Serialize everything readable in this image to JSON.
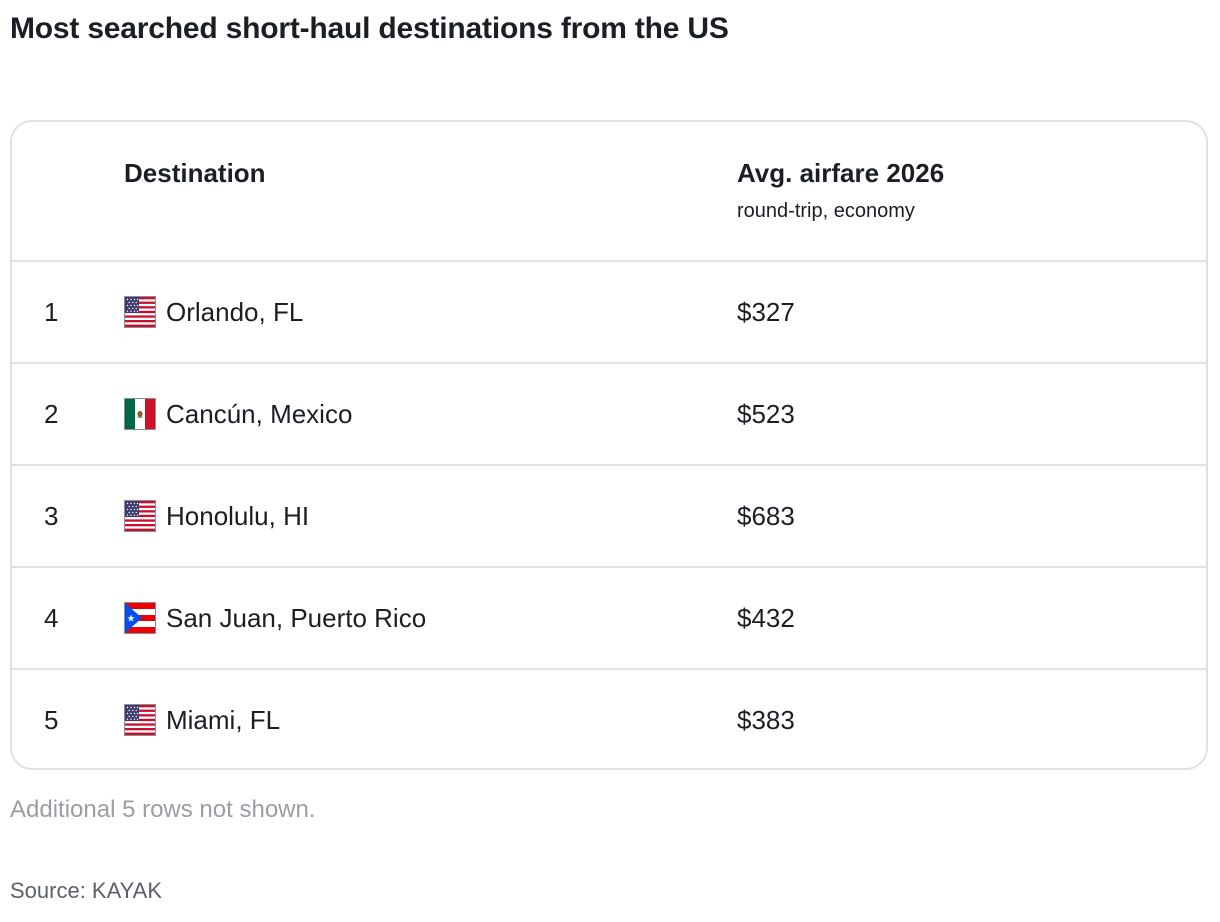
{
  "title": "Most searched short-haul destinations from the US",
  "table": {
    "headers": {
      "destination": "Destination",
      "airfare": "Avg. airfare 2026",
      "airfare_sub": "round-trip, economy"
    },
    "rows": [
      {
        "rank": "1",
        "flag_icon": "us-flag-icon",
        "destination": "Orlando, FL",
        "airfare": "$327"
      },
      {
        "rank": "2",
        "flag_icon": "mexico-flag-icon",
        "destination": "Cancún, Mexico",
        "airfare": "$523"
      },
      {
        "rank": "3",
        "flag_icon": "us-flag-icon",
        "destination": "Honolulu, HI",
        "airfare": "$683"
      },
      {
        "rank": "4",
        "flag_icon": "puerto-rico-flag-icon",
        "destination": "San Juan, Puerto Rico",
        "airfare": "$432"
      },
      {
        "rank": "5",
        "flag_icon": "us-flag-icon",
        "destination": "Miami, FL",
        "airfare": "$383"
      }
    ]
  },
  "note": "Additional 5 rows not shown.",
  "source": "Source: KAYAK",
  "colors": {
    "text": "#1b1f24",
    "border": "#dfe1e4",
    "muted": "#9a9ea4",
    "source": "#5b6169"
  }
}
